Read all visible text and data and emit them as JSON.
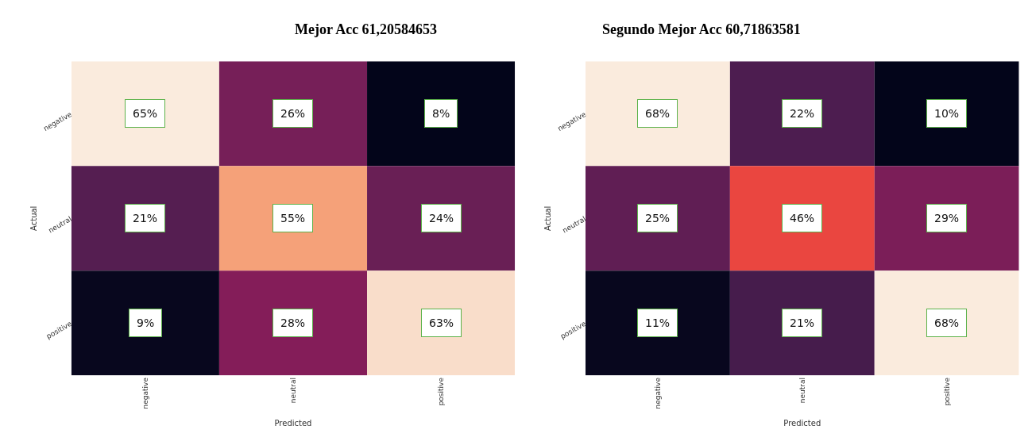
{
  "chart_data": [
    {
      "type": "heatmap",
      "title": "Mejor Acc 61,20584653",
      "xlabel": "Predicted",
      "ylabel": "Actual",
      "categories": [
        "negative",
        "neutral",
        "positive"
      ],
      "y_categories": [
        "negative",
        "neutral",
        "positive"
      ],
      "cells": [
        [
          65,
          26,
          8
        ],
        [
          21,
          55,
          24
        ],
        [
          9,
          28,
          63
        ]
      ],
      "cell_labels": [
        [
          "65%",
          "26%",
          "8%"
        ],
        [
          "21%",
          "55%",
          "24%"
        ],
        [
          "9%",
          "28%",
          "63%"
        ]
      ]
    },
    {
      "type": "heatmap",
      "title": "Segundo Mejor Acc 60,71863581",
      "xlabel": "Predicted",
      "ylabel": "Actual",
      "categories": [
        "negative",
        "neutral",
        "positive"
      ],
      "y_categories": [
        "negative",
        "neutral",
        "positive"
      ],
      "cells": [
        [
          68,
          22,
          10
        ],
        [
          25,
          46,
          29
        ],
        [
          11,
          21,
          68
        ]
      ],
      "cell_labels": [
        [
          "68%",
          "22%",
          "10%"
        ],
        [
          "25%",
          "46%",
          "29%"
        ],
        [
          "11%",
          "21%",
          "68%"
        ]
      ]
    }
  ]
}
